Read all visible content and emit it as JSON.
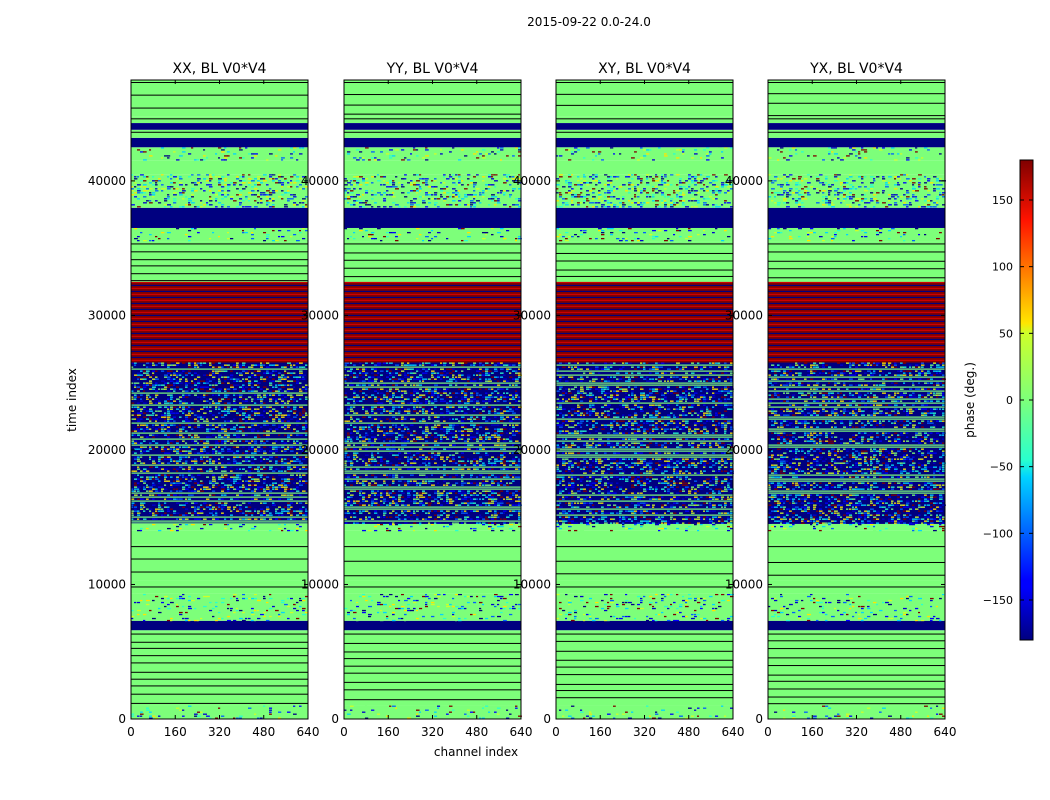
{
  "chart_data": {
    "type": "heatmap",
    "suptitle": "2015-09-22 0.0-24.0",
    "ylabel": "time index",
    "xlabel": "channel index",
    "xlim": [
      0,
      640
    ],
    "ylim": [
      0,
      47500
    ],
    "xticks": [
      0,
      160,
      320,
      480,
      640
    ],
    "yticks": [
      0,
      10000,
      20000,
      30000,
      40000
    ],
    "panels": [
      {
        "title": "XX, BL V0*V4",
        "show_ylabel": true,
        "show_xlabel": false
      },
      {
        "title": "YY, BL V0*V4",
        "show_ylabel": false,
        "show_xlabel": true
      },
      {
        "title": "XY, BL V0*V4",
        "show_ylabel": false,
        "show_xlabel": false
      },
      {
        "title": "YX, BL V0*V4",
        "show_ylabel": false,
        "show_xlabel": false
      }
    ],
    "colorbar": {
      "label": "phase (deg.)",
      "range": [
        -180,
        180
      ],
      "ticks": [
        -150,
        -100,
        -50,
        0,
        50,
        100,
        150
      ],
      "tick_labels": [
        "−150",
        "−100",
        "−50",
        "0",
        "50",
        "100",
        "150"
      ],
      "colormap": "jet"
    },
    "bands": [
      {
        "from": 0,
        "to": 1000,
        "pattern": "noise-sparse"
      },
      {
        "from": 1000,
        "to": 6500,
        "pattern": "green-lines"
      },
      {
        "from": 6500,
        "to": 6600,
        "pattern": "green"
      },
      {
        "from": 6600,
        "to": 7300,
        "pattern": "blue"
      },
      {
        "from": 7300,
        "to": 9300,
        "pattern": "noise-light"
      },
      {
        "from": 9300,
        "to": 10000,
        "pattern": "green-lines"
      },
      {
        "from": 10000,
        "to": 10300,
        "pattern": "green"
      },
      {
        "from": 10300,
        "to": 13000,
        "pattern": "green-dark-lines"
      },
      {
        "from": 13000,
        "to": 14000,
        "pattern": "green"
      },
      {
        "from": 14000,
        "to": 14500,
        "pattern": "noise-light"
      },
      {
        "from": 14500,
        "to": 26500,
        "pattern": "noise-dense"
      },
      {
        "from": 26500,
        "to": 32500,
        "pattern": "red-blue"
      },
      {
        "from": 32500,
        "to": 35500,
        "pattern": "green-lines"
      },
      {
        "from": 35500,
        "to": 36500,
        "pattern": "noise-light"
      },
      {
        "from": 36500,
        "to": 38000,
        "pattern": "blue"
      },
      {
        "from": 38000,
        "to": 40500,
        "pattern": "noise-medium"
      },
      {
        "from": 40500,
        "to": 41500,
        "pattern": "green"
      },
      {
        "from": 41500,
        "to": 42500,
        "pattern": "noise-light"
      },
      {
        "from": 42500,
        "to": 43200,
        "pattern": "blue"
      },
      {
        "from": 43200,
        "to": 43800,
        "pattern": "green-lines"
      },
      {
        "from": 43800,
        "to": 44300,
        "pattern": "blue"
      },
      {
        "from": 44300,
        "to": 44800,
        "pattern": "green-lines"
      },
      {
        "from": 44800,
        "to": 47500,
        "pattern": "green-top"
      }
    ]
  }
}
